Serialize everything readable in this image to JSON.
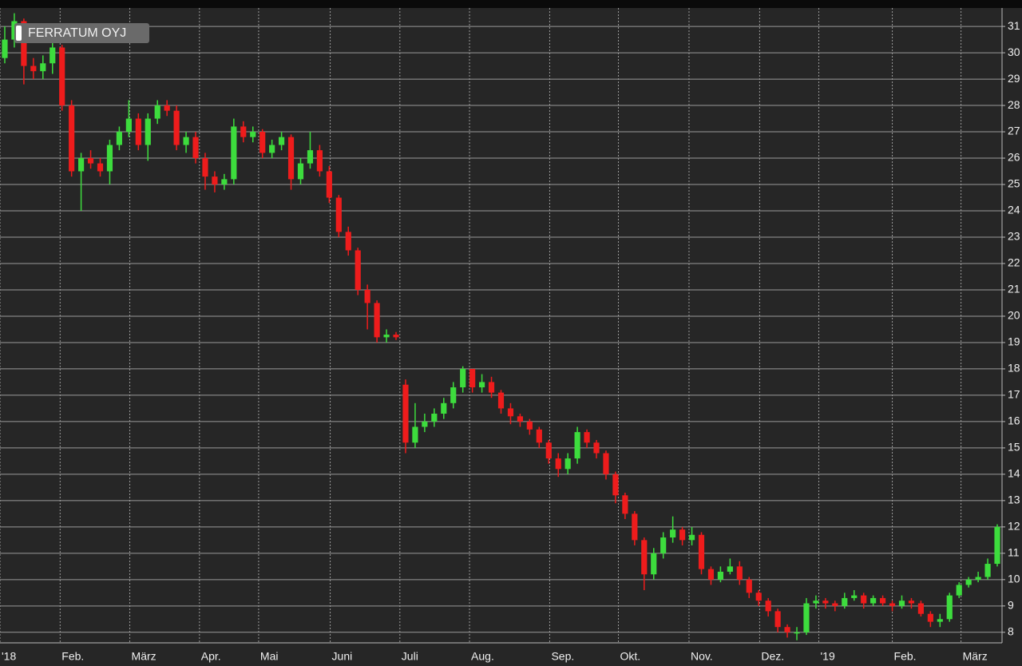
{
  "chart_data": {
    "type": "candlestick",
    "title": "FERRATUM OYJ",
    "up_color": "#3ddc3d",
    "down_color": "#ee1c1c",
    "grid": true,
    "xlim": [
      0,
      105
    ],
    "xticks": [
      {
        "value": 0,
        "label": "'18"
      },
      {
        "value": 6.3,
        "label": "Feb."
      },
      {
        "value": 13.6,
        "label": "März"
      },
      {
        "value": 20.9,
        "label": "Apr."
      },
      {
        "value": 27.1,
        "label": "Mai"
      },
      {
        "value": 34.6,
        "label": "Juni"
      },
      {
        "value": 41.9,
        "label": "Juli"
      },
      {
        "value": 49.2,
        "label": "Aug."
      },
      {
        "value": 57.6,
        "label": "Sep."
      },
      {
        "value": 64.8,
        "label": "Okt."
      },
      {
        "value": 72.2,
        "label": "Nov."
      },
      {
        "value": 79.6,
        "label": "Dez."
      },
      {
        "value": 85.8,
        "label": "'19"
      },
      {
        "value": 93.5,
        "label": "Feb."
      },
      {
        "value": 100.7,
        "label": "März"
      }
    ],
    "ylim": [
      7.6,
      31.7
    ],
    "yticks": [
      8,
      9,
      10,
      11,
      12,
      13,
      14,
      15,
      16,
      17,
      18,
      19,
      20,
      21,
      22,
      23,
      24,
      25,
      26,
      27,
      28,
      29,
      30,
      31
    ],
    "open": [
      29.8,
      30.5,
      31.2,
      29.5,
      29.3,
      29.6,
      30.2,
      28,
      25.5,
      26,
      25.8,
      25.5,
      26.5,
      27,
      27.5,
      26.5,
      27.5,
      28,
      27.8,
      26.5,
      26.8,
      26,
      25.3,
      25,
      25.2,
      27.2,
      26.8,
      27,
      26.2,
      26.5,
      26.8,
      25.2,
      25.8,
      26.3,
      25.5,
      24.5,
      23.2,
      22.5,
      21,
      20.5,
      19.2,
      19.3,
      17.4,
      15.2,
      15.8,
      16,
      16.3,
      16.7,
      17.3,
      18,
      17.3,
      17.5,
      17.1,
      16.5,
      16.2,
      16,
      15.7,
      15.2,
      14.6,
      14.2,
      14.6,
      15.6,
      15.2,
      14.8,
      14,
      13.2,
      12.5,
      11.5,
      10.2,
      11,
      11.6,
      11.9,
      11.5,
      11.7,
      10.4,
      10,
      10.3,
      10.5,
      10,
      9.5,
      9.2,
      8.8,
      8.2,
      8,
      8,
      9.1,
      9.2,
      9.1,
      9,
      9.3,
      9.4,
      9.1,
      9.3,
      9.1,
      9,
      9.2,
      9.1,
      8.7,
      8.4,
      8.5,
      9.4,
      9.8,
      10,
      10.1,
      10.6
    ],
    "high": [
      31,
      31.5,
      31.3,
      29.8,
      29.9,
      30.4,
      30.3,
      28.2,
      26.2,
      26.3,
      26,
      26.7,
      27.2,
      28.2,
      27.7,
      27.7,
      28.2,
      28.2,
      28,
      27,
      27,
      26.2,
      25.5,
      25.4,
      27.5,
      27.4,
      27.2,
      27.1,
      26.7,
      27,
      26.9,
      26,
      27,
      26.5,
      25.7,
      24.6,
      23.4,
      22.6,
      21.2,
      20.6,
      19.5,
      19.4,
      17.6,
      16.7,
      16.3,
      16.5,
      16.9,
      17.5,
      18.1,
      18,
      17.8,
      17.7,
      17.2,
      16.7,
      16.3,
      16.1,
      15.8,
      15.3,
      14.8,
      14.8,
      15.8,
      15.7,
      15.3,
      14.9,
      14.1,
      13.3,
      12.6,
      11.6,
      11.2,
      11.8,
      12.4,
      12,
      12,
      11.8,
      10.5,
      10.5,
      10.8,
      10.7,
      10.1,
      9.6,
      9.3,
      8.9,
      8.3,
      8.2,
      9.3,
      9.4,
      9.3,
      9.2,
      9.5,
      9.6,
      9.5,
      9.4,
      9.4,
      9.2,
      9.4,
      9.3,
      9.2,
      8.8,
      8.7,
      9.5,
      9.9,
      10.1,
      10.3,
      10.8,
      12.1
    ],
    "low": [
      29.6,
      30.2,
      28.8,
      29,
      29,
      29.2,
      27.8,
      25.3,
      24,
      25.6,
      25.3,
      25,
      26.3,
      26.8,
      26.3,
      25.9,
      27.3,
      27.6,
      26.3,
      26.2,
      25.8,
      24.8,
      24.7,
      24.8,
      25,
      26.6,
      26.6,
      26,
      26,
      26.3,
      24.8,
      25,
      25.6,
      25.3,
      24.3,
      23,
      22.3,
      20.8,
      19.5,
      19,
      19,
      19.1,
      14.8,
      15,
      15.6,
      15.8,
      16.1,
      16.5,
      17.1,
      17.1,
      17.1,
      16.9,
      16.3,
      15.9,
      15.8,
      15.5,
      15,
      14.4,
      13.9,
      14,
      14.4,
      15,
      14.6,
      13.8,
      12.9,
      12.3,
      11.3,
      9.6,
      10,
      10.8,
      11.4,
      11.3,
      11.3,
      10.2,
      9.8,
      9.9,
      10.2,
      9.8,
      9.3,
      9,
      8.6,
      8,
      7.8,
      7.7,
      7.9,
      8.9,
      8.9,
      8.8,
      8.9,
      9.2,
      8.9,
      9,
      9,
      8.8,
      8.9,
      8.9,
      8.6,
      8.2,
      8.2,
      8.4,
      9.3,
      9.7,
      9.9,
      10,
      10.5
    ],
    "close": [
      30.5,
      31.2,
      29.5,
      29.3,
      29.6,
      30.2,
      28,
      25.5,
      26,
      25.8,
      25.5,
      26.5,
      27,
      27.5,
      26.5,
      27.5,
      28,
      27.8,
      26.5,
      26.8,
      26,
      25.3,
      25,
      25.2,
      27.2,
      26.8,
      27,
      26.2,
      26.5,
      26.8,
      25.2,
      25.8,
      26.3,
      25.5,
      24.5,
      23.2,
      22.5,
      21,
      20.5,
      19.2,
      19.3,
      19.2,
      15.2,
      15.8,
      16,
      16.3,
      16.7,
      17.3,
      18,
      17.3,
      17.5,
      17.1,
      16.5,
      16.2,
      16,
      15.7,
      15.2,
      14.6,
      14.2,
      14.6,
      15.6,
      15.2,
      14.8,
      14,
      13.2,
      12.5,
      11.5,
      10.2,
      11,
      11.6,
      11.9,
      11.5,
      11.7,
      10.4,
      10,
      10.3,
      10.5,
      10,
      9.5,
      9.2,
      8.8,
      8.2,
      8,
      8,
      9.1,
      9.2,
      9.1,
      9,
      9.3,
      9.4,
      9.1,
      9.3,
      9.1,
      9,
      9.2,
      9.1,
      8.7,
      8.4,
      8.5,
      9.4,
      9.8,
      10,
      10.1,
      10.6,
      12
    ]
  }
}
